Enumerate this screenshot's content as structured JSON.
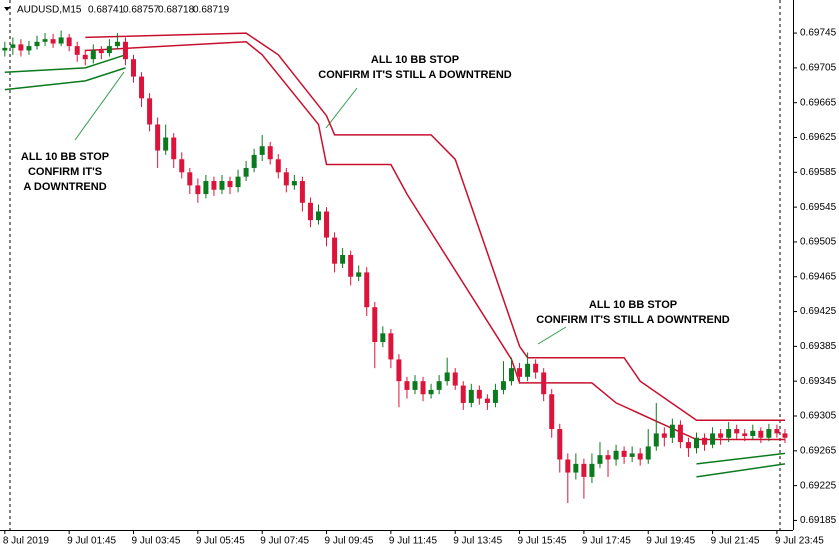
{
  "chart_data": {
    "type": "candlestick",
    "symbol": "AUDUSD,M15",
    "header_values": [
      0.68741,
      0.68757,
      0.68718,
      0.68719
    ],
    "up_color": "#0b7a1e",
    "down_color": "#dc143c",
    "ylim": [
      0.69174,
      0.69783
    ],
    "xlim": [
      -0.6,
      98
    ],
    "yticks": [
      0.69745,
      0.69705,
      0.69665,
      0.69625,
      0.69585,
      0.69545,
      0.69505,
      0.69465,
      0.69425,
      0.69385,
      0.69345,
      0.69305,
      0.69265,
      0.69225,
      0.69185
    ],
    "xticks": [
      {
        "value": 0,
        "label": "8 Jul 2019"
      },
      {
        "value": 8,
        "label": "9 Jul 01:45"
      },
      {
        "value": 16,
        "label": "9 Jul 03:45"
      },
      {
        "value": 24,
        "label": "9 Jul 05:45"
      },
      {
        "value": 32,
        "label": "9 Jul 07:45"
      },
      {
        "value": 40,
        "label": "9 Jul 09:45"
      },
      {
        "value": 48,
        "label": "9 Jul 11:45"
      },
      {
        "value": 56,
        "label": "9 Jul 13:45"
      },
      {
        "value": 64,
        "label": "9 Jul 15:45"
      },
      {
        "value": 72,
        "label": "9 Jul 17:45"
      },
      {
        "value": 80,
        "label": "9 Jul 19:45"
      },
      {
        "value": 88,
        "label": "9 Jul 21:45"
      },
      {
        "value": 96,
        "label": "9 Jul 23:45"
      }
    ],
    "ohlc": [
      [
        0.69725,
        0.69735,
        0.69718,
        0.69728
      ],
      [
        0.69728,
        0.6974,
        0.6972,
        0.69732
      ],
      [
        0.69732,
        0.69738,
        0.69718,
        0.69725
      ],
      [
        0.69725,
        0.69736,
        0.6972,
        0.6973
      ],
      [
        0.6973,
        0.69742,
        0.69726,
        0.69735
      ],
      [
        0.69735,
        0.69745,
        0.6973,
        0.69738
      ],
      [
        0.69738,
        0.69744,
        0.69728,
        0.69733
      ],
      [
        0.69733,
        0.69748,
        0.6973,
        0.6974
      ],
      [
        0.6974,
        0.69744,
        0.69724,
        0.6973
      ],
      [
        0.6973,
        0.69735,
        0.69712,
        0.6972
      ],
      [
        0.6972,
        0.69726,
        0.69708,
        0.69715
      ],
      [
        0.69715,
        0.69732,
        0.6971,
        0.69725
      ],
      [
        0.69725,
        0.6973,
        0.69715,
        0.69722
      ],
      [
        0.69722,
        0.69738,
        0.69718,
        0.6973
      ],
      [
        0.6973,
        0.69745,
        0.69726,
        0.69735
      ],
      [
        0.69735,
        0.6974,
        0.69708,
        0.69715
      ],
      [
        0.69715,
        0.6972,
        0.69688,
        0.69695
      ],
      [
        0.69695,
        0.697,
        0.6966,
        0.6967
      ],
      [
        0.6967,
        0.69676,
        0.69632,
        0.6964
      ],
      [
        0.6964,
        0.69648,
        0.6959,
        0.6961
      ],
      [
        0.6961,
        0.6964,
        0.69605,
        0.69625
      ],
      [
        0.69625,
        0.6963,
        0.6959,
        0.696
      ],
      [
        0.696,
        0.69608,
        0.69578,
        0.69585
      ],
      [
        0.69585,
        0.6959,
        0.6956,
        0.6957
      ],
      [
        0.6957,
        0.69578,
        0.6955,
        0.6956
      ],
      [
        0.6956,
        0.69582,
        0.69555,
        0.69575
      ],
      [
        0.69575,
        0.6958,
        0.69558,
        0.69565
      ],
      [
        0.69565,
        0.69582,
        0.6956,
        0.69575
      ],
      [
        0.69575,
        0.6958,
        0.6956,
        0.69568
      ],
      [
        0.69568,
        0.69588,
        0.69562,
        0.6958
      ],
      [
        0.6958,
        0.69598,
        0.69575,
        0.6959
      ],
      [
        0.6959,
        0.69612,
        0.69585,
        0.69605
      ],
      [
        0.69605,
        0.69628,
        0.69598,
        0.69615
      ],
      [
        0.69615,
        0.6962,
        0.69594,
        0.696
      ],
      [
        0.696,
        0.69606,
        0.69578,
        0.69585
      ],
      [
        0.69585,
        0.6959,
        0.69562,
        0.6957
      ],
      [
        0.6957,
        0.69582,
        0.69565,
        0.69575
      ],
      [
        0.69575,
        0.6958,
        0.6954,
        0.6955
      ],
      [
        0.6955,
        0.69556,
        0.69522,
        0.6953
      ],
      [
        0.6953,
        0.69548,
        0.69525,
        0.6954
      ],
      [
        0.6954,
        0.69545,
        0.695,
        0.6951
      ],
      [
        0.6951,
        0.69516,
        0.6947,
        0.6948
      ],
      [
        0.6948,
        0.69498,
        0.69475,
        0.6949
      ],
      [
        0.6949,
        0.69495,
        0.69455,
        0.69465
      ],
      [
        0.69465,
        0.69478,
        0.6946,
        0.6947
      ],
      [
        0.6947,
        0.69476,
        0.6942,
        0.6943
      ],
      [
        0.6943,
        0.69436,
        0.6936,
        0.6939
      ],
      [
        0.6939,
        0.69408,
        0.69384,
        0.694
      ],
      [
        0.694,
        0.69405,
        0.6936,
        0.6937
      ],
      [
        0.6937,
        0.69376,
        0.69315,
        0.69345
      ],
      [
        0.69345,
        0.6935,
        0.69325,
        0.69335
      ],
      [
        0.69335,
        0.69352,
        0.6933,
        0.69345
      ],
      [
        0.69345,
        0.6935,
        0.69322,
        0.6933
      ],
      [
        0.6933,
        0.69342,
        0.69325,
        0.69335
      ],
      [
        0.69335,
        0.69352,
        0.6933,
        0.69345
      ],
      [
        0.69345,
        0.69372,
        0.6934,
        0.69355
      ],
      [
        0.69355,
        0.6936,
        0.69335,
        0.6934
      ],
      [
        0.6934,
        0.69345,
        0.69312,
        0.6932
      ],
      [
        0.6932,
        0.69342,
        0.69315,
        0.69335
      ],
      [
        0.69335,
        0.6934,
        0.69318,
        0.69325
      ],
      [
        0.69325,
        0.6933,
        0.69312,
        0.6932
      ],
      [
        0.6932,
        0.69342,
        0.69315,
        0.69335
      ],
      [
        0.69335,
        0.69368,
        0.6933,
        0.69345
      ],
      [
        0.69345,
        0.69372,
        0.6934,
        0.6936
      ],
      [
        0.6936,
        0.69366,
        0.69342,
        0.6935
      ],
      [
        0.6935,
        0.69378,
        0.69345,
        0.69365
      ],
      [
        0.69365,
        0.6937,
        0.69348,
        0.69355
      ],
      [
        0.69355,
        0.6936,
        0.69322,
        0.6933
      ],
      [
        0.6933,
        0.69336,
        0.6928,
        0.6929
      ],
      [
        0.6929,
        0.69296,
        0.6924,
        0.69255
      ],
      [
        0.69255,
        0.69262,
        0.69205,
        0.6924
      ],
      [
        0.6924,
        0.69262,
        0.69232,
        0.6925
      ],
      [
        0.6925,
        0.69256,
        0.6921,
        0.69235
      ],
      [
        0.69235,
        0.69262,
        0.69228,
        0.6925
      ],
      [
        0.6925,
        0.69275,
        0.69245,
        0.6926
      ],
      [
        0.6926,
        0.69266,
        0.69235,
        0.69255
      ],
      [
        0.69255,
        0.69272,
        0.69248,
        0.69265
      ],
      [
        0.69265,
        0.6927,
        0.6925,
        0.69258
      ],
      [
        0.69258,
        0.6927,
        0.69252,
        0.69262
      ],
      [
        0.69262,
        0.69268,
        0.69248,
        0.69255
      ],
      [
        0.69255,
        0.6929,
        0.6925,
        0.6927
      ],
      [
        0.6927,
        0.6932,
        0.69265,
        0.69285
      ],
      [
        0.69285,
        0.69292,
        0.6927,
        0.6928
      ],
      [
        0.6928,
        0.69302,
        0.69274,
        0.69295
      ],
      [
        0.69295,
        0.693,
        0.69268,
        0.69275
      ],
      [
        0.69275,
        0.6928,
        0.69258,
        0.69268
      ],
      [
        0.69268,
        0.69286,
        0.69262,
        0.6928
      ],
      [
        0.6928,
        0.69285,
        0.69265,
        0.69272
      ],
      [
        0.69272,
        0.69292,
        0.69268,
        0.69285
      ],
      [
        0.69285,
        0.6929,
        0.69272,
        0.6928
      ],
      [
        0.6928,
        0.69298,
        0.69275,
        0.6929
      ],
      [
        0.6929,
        0.69295,
        0.69278,
        0.69285
      ],
      [
        0.69285,
        0.6929,
        0.69276,
        0.69282
      ],
      [
        0.69282,
        0.69295,
        0.69278,
        0.69288
      ],
      [
        0.69288,
        0.69292,
        0.69274,
        0.6928
      ],
      [
        0.6928,
        0.69296,
        0.69276,
        0.6929
      ],
      [
        0.6929,
        0.69295,
        0.6928,
        0.69285
      ],
      [
        0.69285,
        0.6929,
        0.69274,
        0.6928
      ]
    ],
    "series": [
      {
        "color": "#c8102e",
        "x": [
          10,
          30,
          34,
          40,
          41,
          53,
          56,
          64,
          65,
          77,
          79,
          86,
          97
        ],
        "values": [
          0.6974,
          0.69745,
          0.6972,
          0.6965,
          0.69628,
          0.69628,
          0.696,
          0.69385,
          0.69372,
          0.69372,
          0.69345,
          0.693,
          0.693
        ]
      },
      {
        "color": "#c8102e",
        "x": [
          10,
          30,
          32,
          39,
          40,
          48,
          50,
          63,
          64,
          73,
          76,
          86,
          97
        ],
        "values": [
          0.69725,
          0.69735,
          0.6972,
          0.6964,
          0.69594,
          0.69594,
          0.6956,
          0.6937,
          0.69343,
          0.69343,
          0.6932,
          0.69278,
          0.69278
        ]
      },
      {
        "color": "#0b7a1e",
        "x": [
          0,
          10,
          15,
          null,
          86,
          97
        ],
        "values": [
          0.697,
          0.69705,
          0.6972,
          null,
          0.6925,
          0.69262
        ]
      },
      {
        "color": "#0b7a1e",
        "x": [
          0,
          10,
          15,
          null,
          86,
          97
        ],
        "values": [
          0.6968,
          0.6969,
          0.69705,
          null,
          0.69235,
          0.6925
        ]
      }
    ],
    "annotations": [
      {
        "lines": [
          "ALL 10 BB STOP",
          "CONFIRM IT'S",
          "A DOWNTREND"
        ]
      },
      {
        "lines": [
          "ALL 10 BB STOP",
          "CONFIRM IT'S STILL A DOWNTREND"
        ]
      },
      {
        "lines": [
          "ALL 10 BB STOP",
          "CONFIRM IT'S STILL A DOWNTREND"
        ]
      }
    ]
  }
}
